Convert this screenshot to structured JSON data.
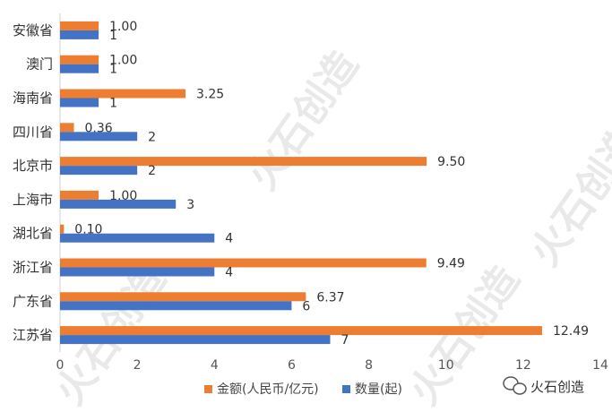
{
  "chart_data": {
    "type": "bar",
    "orientation": "horizontal",
    "categories": [
      "安徽省",
      "澳门",
      "海南省",
      "四川省",
      "北京市",
      "上海市",
      "湖北省",
      "浙江省",
      "广东省",
      "江苏省"
    ],
    "series": [
      {
        "name": "金额(人民币/亿元)",
        "color": "#ED7D31",
        "values": [
          1.0,
          1.0,
          3.25,
          0.36,
          9.5,
          1.0,
          0.1,
          9.49,
          6.37,
          12.49
        ],
        "labels": [
          "1.00",
          "1.00",
          "3.25",
          "0.36",
          "9.50",
          "1.00",
          "0.10",
          "9.49",
          "6.37",
          "12.49"
        ]
      },
      {
        "name": "数量(起)",
        "color": "#4472C4",
        "values": [
          1,
          1,
          1,
          2,
          2,
          3,
          4,
          4,
          6,
          7
        ],
        "labels": [
          "1",
          "1",
          "1",
          "2",
          "2",
          "3",
          "4",
          "4",
          "6",
          "7"
        ]
      }
    ],
    "xlim": [
      0,
      14
    ],
    "xticks": [
      "0",
      "2",
      "4",
      "6",
      "8",
      "10",
      "12",
      "14"
    ],
    "grid": false,
    "legend_position": "bottom"
  },
  "watermark": {
    "text": "火石创造"
  },
  "brand": {
    "text": "火石创造",
    "icon": "wechat-icon"
  }
}
